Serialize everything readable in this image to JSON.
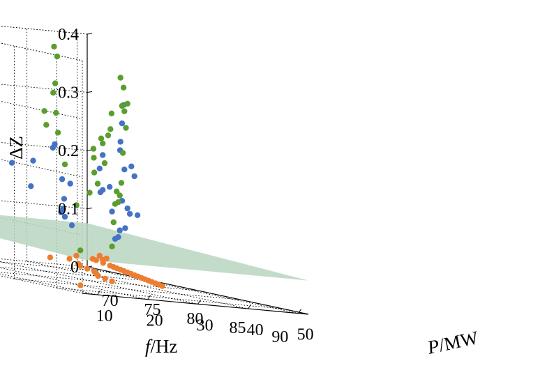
{
  "chart_data": {
    "type": "scatter",
    "title": "",
    "axes": {
      "x": {
        "label_symbol": "f",
        "label_unit": "/Hz",
        "range": [
          67,
          93
        ],
        "ticks": [
          "70",
          "75",
          "80",
          "85",
          "90"
        ]
      },
      "y": {
        "label_symbol": "P",
        "label_unit": "/MW",
        "range": [
          7,
          52
        ],
        "ticks": [
          "10",
          "20",
          "30",
          "40",
          "50"
        ]
      },
      "z": {
        "label": "ΔZ",
        "range": [
          0,
          0.4
        ],
        "ticks": [
          "0",
          "0.1",
          "0.2",
          "0.3",
          "0.4"
        ]
      }
    },
    "grid": true,
    "surface": {
      "description": "near-flat plane at ΔZ ≈ 0.07",
      "z_value": 0.07,
      "color": "#b9d6c1"
    },
    "series": [
      {
        "color": "#4472c4",
        "points": [
          {
            "x": 70,
            "y": 50,
            "z": 0.2
          },
          {
            "x": 70,
            "y": 50,
            "z": 0.14
          },
          {
            "x": 72,
            "y": 48,
            "z": 0.15
          },
          {
            "x": 72,
            "y": 46,
            "z": 0.18
          },
          {
            "x": 75,
            "y": 45,
            "z": 0.22
          },
          {
            "x": 76,
            "y": 44,
            "z": 0.3
          },
          {
            "x": 77,
            "y": 42,
            "z": 0.27
          },
          {
            "x": 78,
            "y": 40,
            "z": 0.24
          },
          {
            "x": 80,
            "y": 40,
            "z": 0.12
          },
          {
            "x": 80,
            "y": 38,
            "z": 0.13
          },
          {
            "x": 82,
            "y": 36,
            "z": 0.19
          },
          {
            "x": 82,
            "y": 34,
            "z": 0.2
          },
          {
            "x": 84,
            "y": 32,
            "z": 0.21
          },
          {
            "x": 85,
            "y": 30,
            "z": 0.13
          },
          {
            "x": 85,
            "y": 28,
            "z": 0.1
          },
          {
            "x": 86,
            "y": 26,
            "z": 0.09
          },
          {
            "x": 88,
            "y": 24,
            "z": 0.11
          },
          {
            "x": 88,
            "y": 22,
            "z": 0.09
          },
          {
            "x": 90,
            "y": 20,
            "z": 0.16
          },
          {
            "x": 90,
            "y": 18,
            "z": 0.14
          },
          {
            "x": 73,
            "y": 35,
            "z": 0.21
          },
          {
            "x": 75,
            "y": 32,
            "z": 0.22
          },
          {
            "x": 78,
            "y": 30,
            "z": 0.16
          },
          {
            "x": 80,
            "y": 25,
            "z": 0.17
          },
          {
            "x": 82,
            "y": 22,
            "z": 0.14
          },
          {
            "x": 84,
            "y": 18,
            "z": 0.12
          },
          {
            "x": 86,
            "y": 15,
            "z": 0.13
          },
          {
            "x": 88,
            "y": 12,
            "z": 0.12
          },
          {
            "x": 90,
            "y": 10,
            "z": 0.11
          },
          {
            "x": 78,
            "y": 36,
            "z": 0.15
          },
          {
            "x": 76,
            "y": 26,
            "z": 0.19
          },
          {
            "x": 74,
            "y": 20,
            "z": 0.22
          },
          {
            "x": 80,
            "y": 15,
            "z": 0.19
          },
          {
            "x": 84,
            "y": 12,
            "z": 0.16
          }
        ]
      },
      {
        "color": "#5a9e2f",
        "points": [
          {
            "x": 70,
            "y": 50,
            "z": 0.22
          },
          {
            "x": 70,
            "y": 49,
            "z": 0.15
          },
          {
            "x": 71,
            "y": 48,
            "z": 0.23
          },
          {
            "x": 72,
            "y": 47,
            "z": 0.19
          },
          {
            "x": 73,
            "y": 46,
            "z": 0.24
          },
          {
            "x": 74,
            "y": 45,
            "z": 0.28
          },
          {
            "x": 76,
            "y": 44,
            "z": 0.33
          },
          {
            "x": 77,
            "y": 42,
            "z": 0.3
          },
          {
            "x": 78,
            "y": 40,
            "z": 0.35
          },
          {
            "x": 78,
            "y": 38,
            "z": 0.26
          },
          {
            "x": 80,
            "y": 38,
            "z": 0.31
          },
          {
            "x": 81,
            "y": 36,
            "z": 0.27
          },
          {
            "x": 82,
            "y": 34,
            "z": 0.3
          },
          {
            "x": 83,
            "y": 32,
            "z": 0.23
          },
          {
            "x": 84,
            "y": 30,
            "z": 0.18
          },
          {
            "x": 85,
            "y": 28,
            "z": 0.16
          },
          {
            "x": 86,
            "y": 26,
            "z": 0.15
          },
          {
            "x": 87,
            "y": 24,
            "z": 0.17
          },
          {
            "x": 88,
            "y": 22,
            "z": 0.15
          },
          {
            "x": 89,
            "y": 20,
            "z": 0.12
          },
          {
            "x": 90,
            "y": 18,
            "z": 0.08
          },
          {
            "x": 91,
            "y": 10,
            "z": 0.07
          },
          {
            "x": 72,
            "y": 35,
            "z": 0.27
          },
          {
            "x": 74,
            "y": 32,
            "z": 0.25
          },
          {
            "x": 76,
            "y": 30,
            "z": 0.31
          },
          {
            "x": 78,
            "y": 27,
            "z": 0.33
          },
          {
            "x": 80,
            "y": 24,
            "z": 0.38
          },
          {
            "x": 82,
            "y": 20,
            "z": 0.4
          },
          {
            "x": 84,
            "y": 17,
            "z": 0.29
          },
          {
            "x": 86,
            "y": 14,
            "z": 0.26
          },
          {
            "x": 88,
            "y": 12,
            "z": 0.21
          },
          {
            "x": 76,
            "y": 38,
            "z": 0.22
          },
          {
            "x": 79,
            "y": 33,
            "z": 0.21
          },
          {
            "x": 82,
            "y": 28,
            "z": 0.19
          },
          {
            "x": 85,
            "y": 22,
            "z": 0.16
          },
          {
            "x": 87,
            "y": 16,
            "z": 0.14
          }
        ]
      },
      {
        "color": "#ed7d31",
        "points": [
          {
            "x": 70,
            "y": 50,
            "z": 0.02
          },
          {
            "x": 70,
            "y": 48,
            "z": 0.02
          },
          {
            "x": 71,
            "y": 47,
            "z": 0.02
          },
          {
            "x": 72,
            "y": 46,
            "z": 0.03
          },
          {
            "x": 73,
            "y": 45,
            "z": 0.02
          },
          {
            "x": 74,
            "y": 44,
            "z": 0.03
          },
          {
            "x": 75,
            "y": 43,
            "z": 0.02
          },
          {
            "x": 76,
            "y": 42,
            "z": 0.02
          },
          {
            "x": 77,
            "y": 41,
            "z": 0.02
          },
          {
            "x": 78,
            "y": 40,
            "z": 0.02
          },
          {
            "x": 79,
            "y": 39,
            "z": 0.02
          },
          {
            "x": 80,
            "y": 38,
            "z": 0.02
          },
          {
            "x": 81,
            "y": 37,
            "z": 0.02
          },
          {
            "x": 82,
            "y": 36,
            "z": 0.02
          },
          {
            "x": 83,
            "y": 35,
            "z": 0.02
          },
          {
            "x": 84,
            "y": 34,
            "z": 0.02
          },
          {
            "x": 85,
            "y": 33,
            "z": 0.02
          },
          {
            "x": 86,
            "y": 32,
            "z": 0.02
          },
          {
            "x": 87,
            "y": 31,
            "z": 0.02
          },
          {
            "x": 88,
            "y": 30,
            "z": 0.02
          },
          {
            "x": 89,
            "y": 29,
            "z": 0.02
          },
          {
            "x": 90,
            "y": 28,
            "z": 0.02
          },
          {
            "x": 76,
            "y": 35,
            "z": 0.02
          },
          {
            "x": 78,
            "y": 32,
            "z": 0.02
          },
          {
            "x": 80,
            "y": 30,
            "z": 0.02
          },
          {
            "x": 82,
            "y": 28,
            "z": 0.02
          },
          {
            "x": 84,
            "y": 25,
            "z": 0.02
          },
          {
            "x": 86,
            "y": 22,
            "z": 0.02
          },
          {
            "x": 88,
            "y": 20,
            "z": 0.02
          },
          {
            "x": 90,
            "y": 18,
            "z": 0.02
          },
          {
            "x": 74,
            "y": 38,
            "z": 0.03
          },
          {
            "x": 72,
            "y": 40,
            "z": 0.02
          },
          {
            "x": 78,
            "y": 26,
            "z": 0.03
          },
          {
            "x": 91,
            "y": 10,
            "z": 0.01
          }
        ]
      }
    ]
  }
}
